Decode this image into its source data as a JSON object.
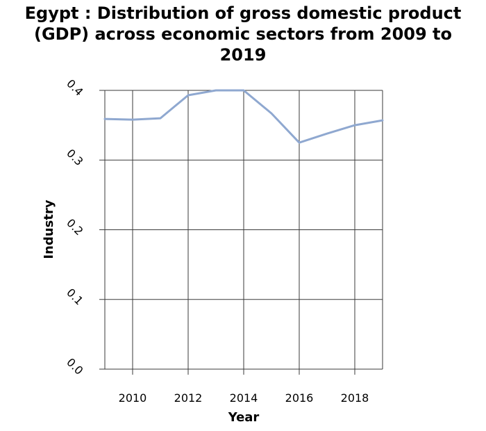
{
  "chart_data": {
    "type": "line",
    "title_lines": [
      "Egypt : Distribution of gross domestic product",
      "(GDP) across economic sectors from 2009 to",
      "2019"
    ],
    "xlabel": "Year",
    "ylabel": "Industry",
    "xlim": [
      2009,
      2019
    ],
    "ylim": [
      0.0,
      0.4
    ],
    "x_ticks": [
      2010,
      2012,
      2014,
      2016,
      2018
    ],
    "y_ticks": [
      "0.0",
      "0.1",
      "0.2",
      "0.3",
      "0.4"
    ],
    "grid": true,
    "series": [
      {
        "color": "#8fa8d0",
        "x": [
          2009,
          2010,
          2011,
          2012,
          2013,
          2014,
          2015,
          2016,
          2017,
          2018,
          2019
        ],
        "y": [
          0.359,
          0.358,
          0.36,
          0.393,
          0.4,
          0.4,
          0.367,
          0.325,
          0.338,
          0.35,
          0.357
        ]
      }
    ]
  }
}
